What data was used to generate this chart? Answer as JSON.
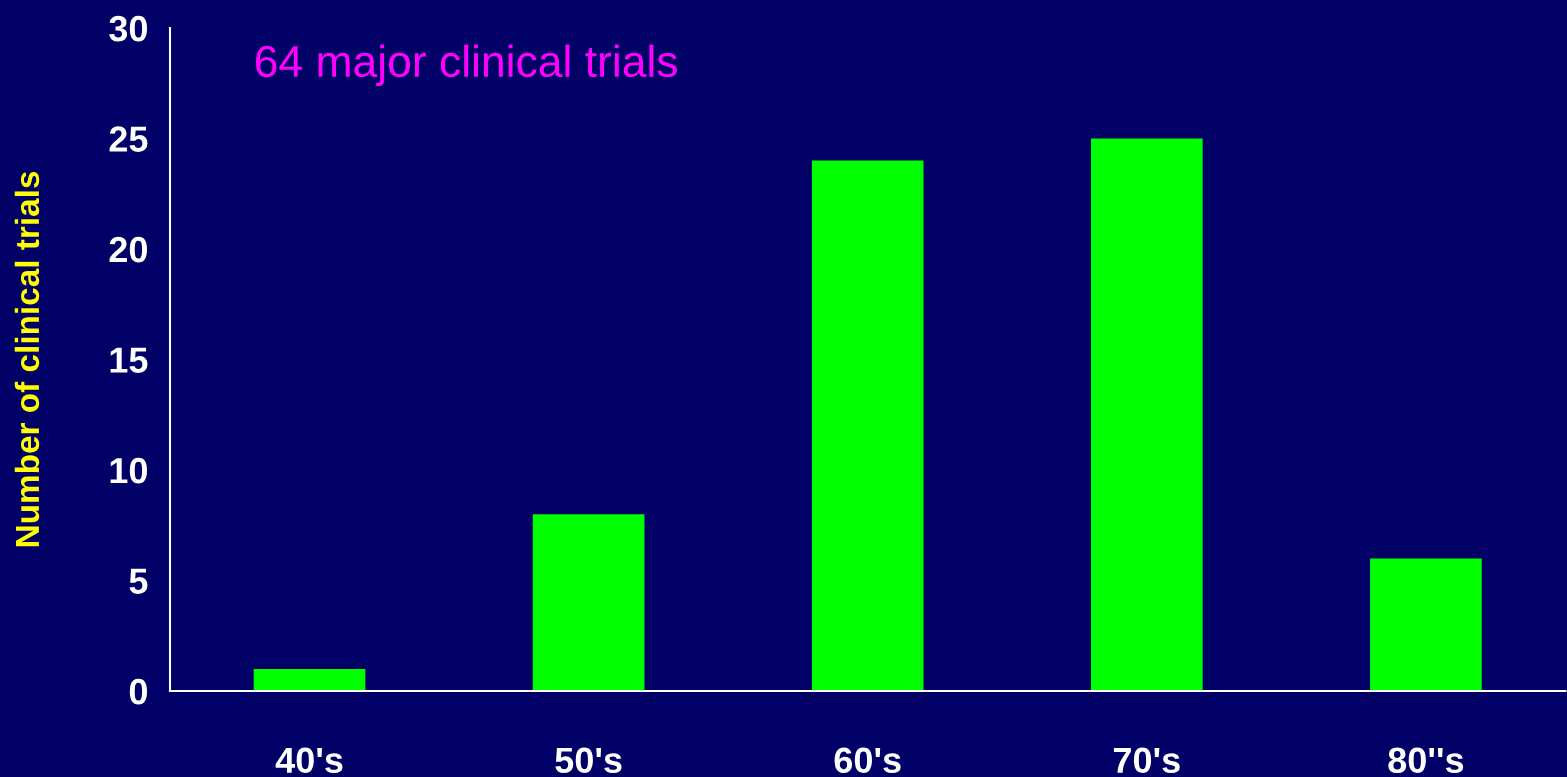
{
  "chart_data": {
    "type": "bar",
    "title": "64 major clinical trials",
    "ylabel": "Number of clinical trials",
    "categories": [
      "40's",
      "50's",
      "60's",
      "70's",
      "80''s"
    ],
    "values": [
      1,
      8,
      24,
      25,
      6
    ],
    "color": "#00ff00",
    "ylim": [
      0,
      30
    ],
    "yticks": [
      0,
      5,
      10,
      15,
      20,
      25,
      30
    ],
    "grid": false,
    "legend": false
  }
}
